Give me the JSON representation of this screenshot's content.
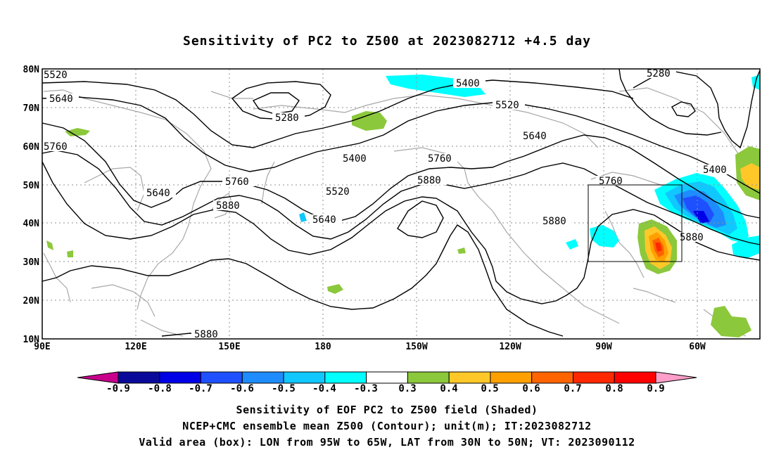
{
  "title": "Sensitivity of PC2 to Z500 at 2023082712 +4.5 day",
  "lat_labels": [
    "80N",
    "70N",
    "60N",
    "50N",
    "40N",
    "30N",
    "20N",
    "10N"
  ],
  "lon_labels": [
    "90E",
    "120E",
    "150E",
    "180",
    "150W",
    "120W",
    "90W",
    "60W"
  ],
  "contour_labels": [
    "5520",
    "5640",
    "5760",
    "5400",
    "5280",
    "5520",
    "5400",
    "5640",
    "5760",
    "5520",
    "5760",
    "5640",
    "5880",
    "5880",
    "5640",
    "5760",
    "5880",
    "5280",
    "5400",
    "5880",
    "5880"
  ],
  "colorbar": {
    "labels": [
      "-0.9",
      "-0.8",
      "-0.7",
      "-0.6",
      "-0.5",
      "-0.4",
      "-0.3",
      "0.3",
      "0.4",
      "0.5",
      "0.6",
      "0.7",
      "0.8",
      "0.9"
    ],
    "colors": [
      "#0a0a9a",
      "#0000e6",
      "#1e50ff",
      "#1e8cff",
      "#10c8ff",
      "#00ffff",
      "#ffffff",
      "#8cc83c",
      "#ffc828",
      "#ffa000",
      "#ff6400",
      "#ff2800",
      "#ff0000"
    ],
    "left_end_color": "#c8008c",
    "right_end_color": "#ff9ec8"
  },
  "captions": [
    "Sensitivity of EOF PC2 to Z500 field (Shaded)",
    "NCEP+CMC ensemble mean Z500 (Contour); unit(m); IT:2023082712",
    "Valid area (box): LON from 95W to 65W, LAT from 30N to 50N; VT: 2023090112"
  ]
}
